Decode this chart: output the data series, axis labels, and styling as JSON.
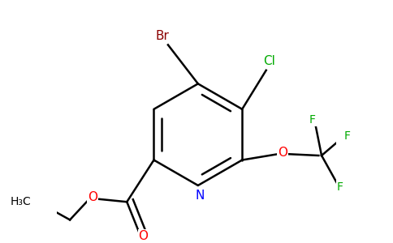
{
  "title": "",
  "background_color": "#ffffff",
  "bond_color": "#000000",
  "atom_colors": {
    "Br": "#8b0000",
    "Cl": "#00aa00",
    "N": "#0000ff",
    "O": "#ff0000",
    "F": "#00aa00",
    "C": "#000000",
    "H": "#000000"
  },
  "figsize": [
    4.84,
    3.0
  ],
  "dpi": 100
}
